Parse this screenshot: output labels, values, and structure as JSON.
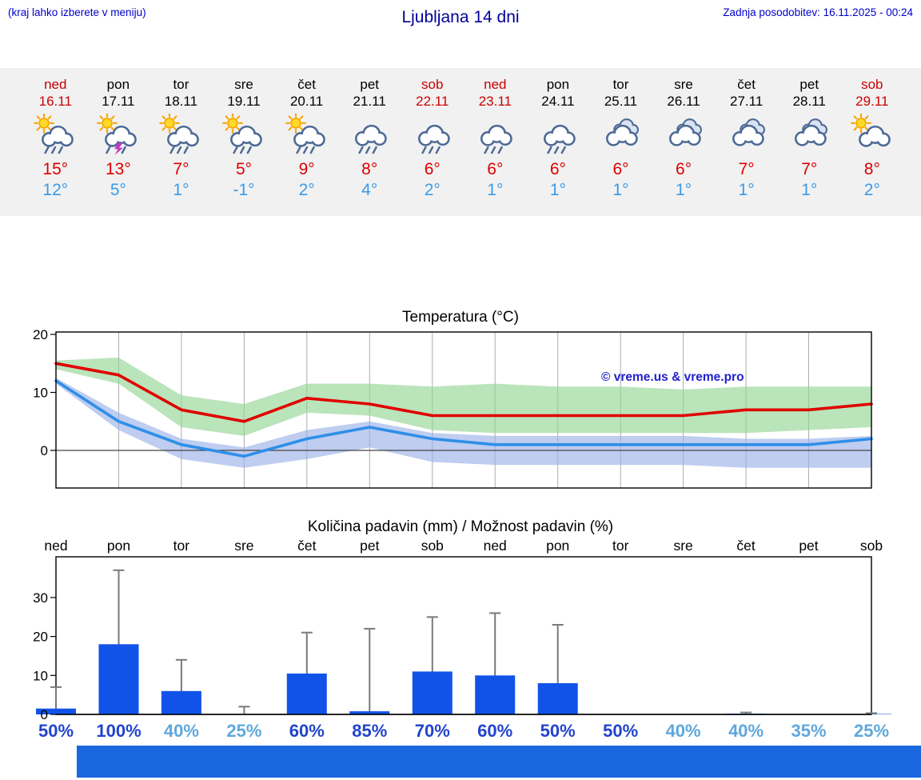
{
  "header": {
    "hint": "(kraj lahko izberete v meniju)",
    "title": "Ljubljana 14 dni",
    "updated": "Zadnja posodobitev: 16.11.2025 - 00:24"
  },
  "days": [
    {
      "name": "ned",
      "date": "16.11",
      "weekend": true,
      "icon": "sun-rain",
      "tmax": "15°",
      "tmin": "12°"
    },
    {
      "name": "pon",
      "date": "17.11",
      "weekend": false,
      "icon": "sun-thunder-rain",
      "tmax": "13°",
      "tmin": "5°"
    },
    {
      "name": "tor",
      "date": "18.11",
      "weekend": false,
      "icon": "sun-rain",
      "tmax": "7°",
      "tmin": "1°"
    },
    {
      "name": "sre",
      "date": "19.11",
      "weekend": false,
      "icon": "sun-rain",
      "tmax": "5°",
      "tmin": "-1°"
    },
    {
      "name": "čet",
      "date": "20.11",
      "weekend": false,
      "icon": "sun-rain",
      "tmax": "9°",
      "tmin": "2°"
    },
    {
      "name": "pet",
      "date": "21.11",
      "weekend": false,
      "icon": "cloud-rain",
      "tmax": "8°",
      "tmin": "4°"
    },
    {
      "name": "sob",
      "date": "22.11",
      "weekend": true,
      "icon": "cloud-rain",
      "tmax": "6°",
      "tmin": "2°"
    },
    {
      "name": "ned",
      "date": "23.11",
      "weekend": true,
      "icon": "cloud-rain",
      "tmax": "6°",
      "tmin": "1°"
    },
    {
      "name": "pon",
      "date": "24.11",
      "weekend": false,
      "icon": "cloud-rain",
      "tmax": "6°",
      "tmin": "1°"
    },
    {
      "name": "tor",
      "date": "25.11",
      "weekend": false,
      "icon": "cloudy",
      "tmax": "6°",
      "tmin": "1°"
    },
    {
      "name": "sre",
      "date": "26.11",
      "weekend": false,
      "icon": "cloudy",
      "tmax": "6°",
      "tmin": "1°"
    },
    {
      "name": "čet",
      "date": "27.11",
      "weekend": false,
      "icon": "cloudy",
      "tmax": "7°",
      "tmin": "1°"
    },
    {
      "name": "pet",
      "date": "28.11",
      "weekend": false,
      "icon": "cloudy",
      "tmax": "7°",
      "tmin": "1°"
    },
    {
      "name": "sob",
      "date": "29.11",
      "weekend": true,
      "icon": "sun-cloud",
      "tmax": "8°",
      "tmin": "2°"
    }
  ],
  "chart_data": [
    {
      "type": "line",
      "title": "Temperatura (°C)",
      "categories": [
        "ned",
        "pon",
        "tor",
        "sre",
        "čet",
        "pet",
        "sob",
        "ned",
        "pon",
        "tor",
        "sre",
        "čet",
        "pet",
        "sob"
      ],
      "series": [
        {
          "name": "max-temperature",
          "color": "#e00000",
          "values": [
            15,
            13,
            7,
            5,
            9,
            8,
            6,
            6,
            6,
            6,
            6,
            7,
            7,
            8
          ]
        },
        {
          "name": "min-temperature",
          "color": "#2e8fe8",
          "values": [
            12,
            5,
            1,
            -1,
            2,
            4,
            2,
            1,
            1,
            1,
            1,
            1,
            1,
            2
          ]
        }
      ],
      "bands": [
        {
          "name": "max-range",
          "color": "#8fd48f",
          "high": [
            15.5,
            16,
            9.5,
            8,
            11.5,
            11.5,
            11,
            11.5,
            11,
            11,
            10.5,
            11,
            11,
            11
          ],
          "low": [
            14,
            11.5,
            4,
            2.5,
            6.5,
            6,
            3.5,
            3,
            3,
            3,
            3,
            3,
            3.5,
            4
          ]
        },
        {
          "name": "min-range",
          "color": "#96aee6",
          "high": [
            12.5,
            6.5,
            2,
            0.5,
            3.5,
            5,
            3,
            2.5,
            2.5,
            2.5,
            2.5,
            2,
            2,
            2.5
          ],
          "low": [
            11.5,
            3.5,
            -1.5,
            -3,
            -1.5,
            0.5,
            -2,
            -2.5,
            -2.5,
            -2.5,
            -2.5,
            -3,
            -3,
            -3
          ]
        }
      ],
      "ylim": [
        -6.5,
        20.5
      ],
      "yticks": [
        0,
        10,
        20
      ],
      "grid": "vertical",
      "watermark": "© vreme.us & vreme.pro"
    },
    {
      "type": "bar",
      "title": "Količina padavin (mm) / Možnost padavin (%)",
      "categories": [
        "ned",
        "pon",
        "tor",
        "sre",
        "čet",
        "pet",
        "sob",
        "ned",
        "pon",
        "tor",
        "sre",
        "čet",
        "pet",
        "sob"
      ],
      "values": [
        1.5,
        18,
        6,
        0,
        10.5,
        0.8,
        11,
        10,
        8,
        0,
        0,
        0.2,
        0,
        0.1
      ],
      "whiskers": [
        7,
        37,
        14,
        2,
        21,
        22,
        25,
        26,
        23,
        0,
        0,
        0.5,
        0,
        0.3
      ],
      "probabilities": [
        "50%",
        "100%",
        "40%",
        "25%",
        "60%",
        "85%",
        "70%",
        "60%",
        "50%",
        "50%",
        "40%",
        "40%",
        "35%",
        "25%"
      ],
      "bar_color": "#1153e8",
      "whisker_color": "#7a7a7a",
      "prob_color_high": "#2244cc",
      "prob_color_low": "#5fa8dc",
      "ylim": [
        0,
        40.5
      ],
      "yticks": [
        0,
        10,
        20,
        30
      ]
    }
  ],
  "footer": {
    "banner_color": "#1b67e0"
  }
}
